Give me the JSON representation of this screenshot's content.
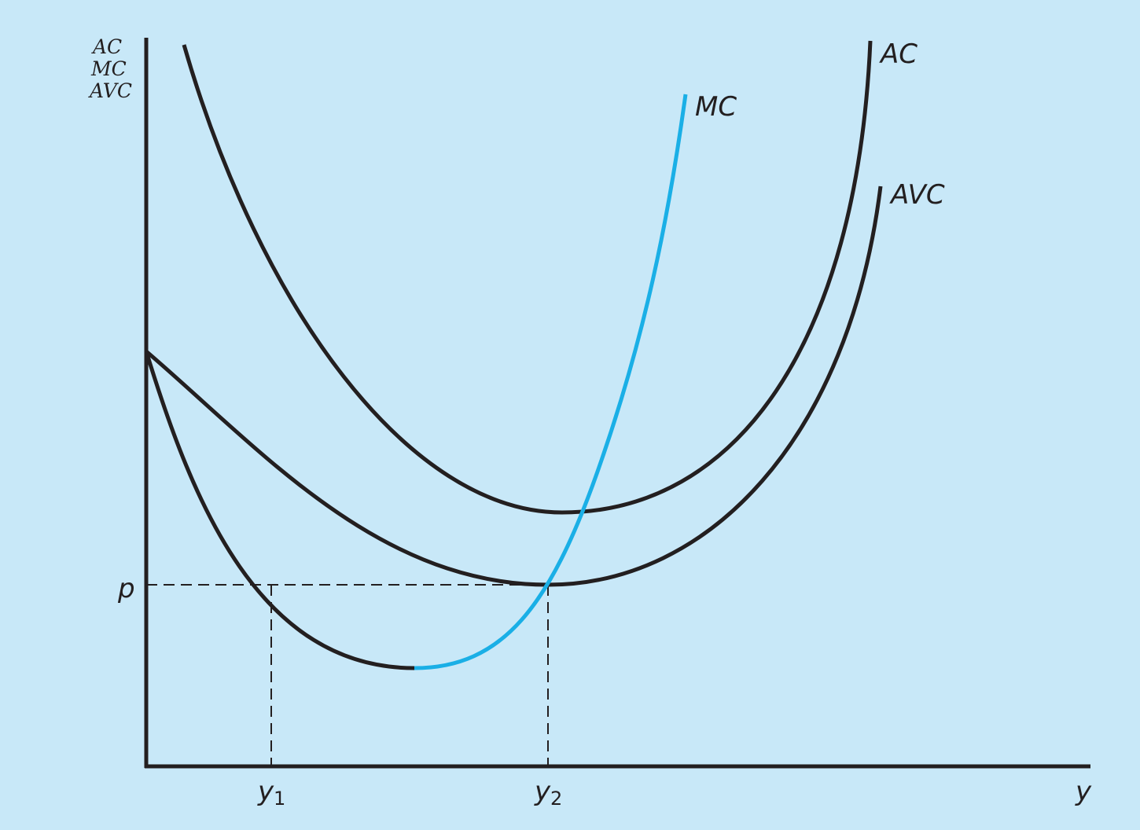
{
  "chart_data": {
    "type": "line",
    "y_axis_label_lines": [
      "AC",
      "MC",
      "AVC"
    ],
    "x_axis_label": "y",
    "curve_labels": {
      "ac": "AC",
      "mc": "MC",
      "avc": "AVC"
    },
    "x_ticks": [
      {
        "base": "y",
        "sub": "1"
      },
      {
        "base": "y",
        "sub": "2"
      }
    ],
    "y_ticks": [
      "p"
    ],
    "colors": {
      "background": "#c8e8f8",
      "curves": "#231f20",
      "mc_rising": "#1aafe6",
      "guides": "#231f20"
    }
  }
}
